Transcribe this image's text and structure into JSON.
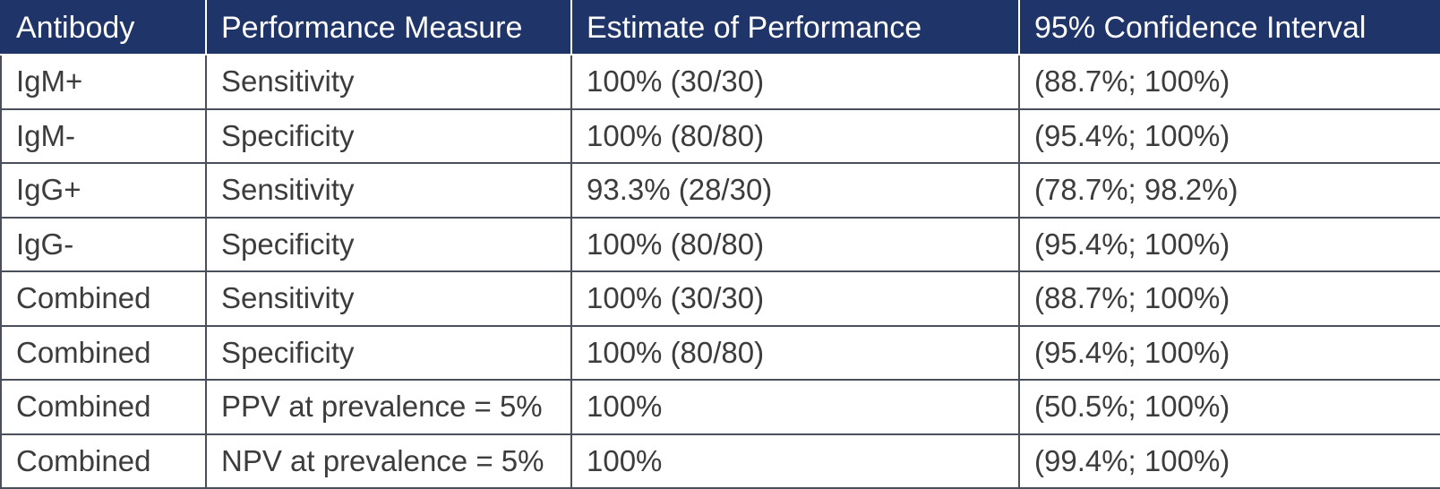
{
  "table": {
    "headers": [
      "Antibody",
      "Performance Measure",
      "Estimate of Performance",
      "95% Confidence Interval"
    ],
    "rows": [
      [
        "IgM+",
        "Sensitivity",
        "100% (30/30)",
        "(88.7%; 100%)"
      ],
      [
        "IgM-",
        "Specificity",
        "100% (80/80)",
        "(95.4%; 100%)"
      ],
      [
        "IgG+",
        "Sensitivity",
        "93.3% (28/30)",
        "(78.7%; 98.2%)"
      ],
      [
        "IgG-",
        "Specificity",
        "100% (80/80)",
        "(95.4%; 100%)"
      ],
      [
        "Combined",
        "Sensitivity",
        "100% (30/30)",
        "(88.7%; 100%)"
      ],
      [
        "Combined",
        "Specificity",
        "100% (80/80)",
        "(95.4%; 100%)"
      ],
      [
        "Combined",
        "PPV at prevalence = 5%",
        "100%",
        "(50.5%; 100%)"
      ],
      [
        "Combined",
        "NPV at prevalence = 5%",
        "100%",
        "(99.4%; 100%)"
      ]
    ]
  },
  "colors": {
    "header_background": "#1f3468",
    "header_text": "#ffffff",
    "body_text": "#3c3c3c",
    "grid_line": "#4a4f5c"
  }
}
